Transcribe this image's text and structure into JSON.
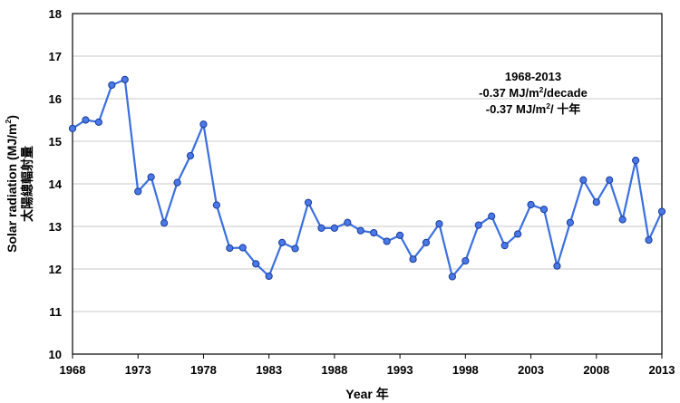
{
  "chart_data": {
    "type": "line",
    "xlabel": "Year 年",
    "ylabel_en": "Solar radiation (MJ/m",
    "ylabel_sup": "2",
    "ylabel_end": ")",
    "ylabel_zh": "太陽總輻射量",
    "xlim": [
      1968,
      2013
    ],
    "ylim": [
      10,
      18
    ],
    "x_ticks": [
      1968,
      1973,
      1978,
      1983,
      1988,
      1993,
      1998,
      2003,
      2008,
      2013
    ],
    "y_ticks": [
      10,
      11,
      12,
      13,
      14,
      15,
      16,
      17,
      18
    ],
    "grid": "horizontal",
    "line_color": "#3b6fe0",
    "marker_fill": "#4a78e6",
    "marker_stroke": "#1a3c9a",
    "annotation": {
      "line1": "1968-2013",
      "line2_pre": "-0.37 MJ/m",
      "line2_sup": "2",
      "line2_post": "/decade",
      "line3_pre": "-0.37 MJ/m",
      "line3_sup": "2",
      "line3_post": "/ 十年"
    },
    "series": [
      {
        "x": [
          1968,
          1969,
          1970,
          1971,
          1972,
          1973,
          1974,
          1975,
          1976,
          1977,
          1978,
          1979,
          1980,
          1981,
          1982,
          1983,
          1984,
          1985,
          1986,
          1987,
          1988,
          1989,
          1990,
          1991,
          1992,
          1993,
          1994,
          1995,
          1996,
          1997,
          1998,
          1999,
          2000,
          2001,
          2002,
          2003,
          2004,
          2005,
          2006,
          2007,
          2008,
          2009,
          2010,
          2011,
          2012,
          2013
        ],
        "values": [
          15.3,
          15.5,
          15.45,
          16.32,
          16.45,
          13.82,
          14.16,
          13.08,
          14.03,
          14.66,
          15.4,
          13.5,
          12.49,
          12.5,
          12.12,
          11.83,
          12.62,
          12.48,
          13.56,
          12.96,
          12.96,
          13.09,
          12.9,
          12.85,
          12.65,
          12.79,
          12.23,
          12.62,
          13.06,
          11.82,
          12.19,
          13.03,
          13.24,
          12.55,
          12.82,
          13.51,
          13.4,
          12.07,
          13.09,
          14.09,
          13.57,
          14.09,
          13.16,
          14.55,
          12.68,
          13.35
        ]
      }
    ]
  }
}
